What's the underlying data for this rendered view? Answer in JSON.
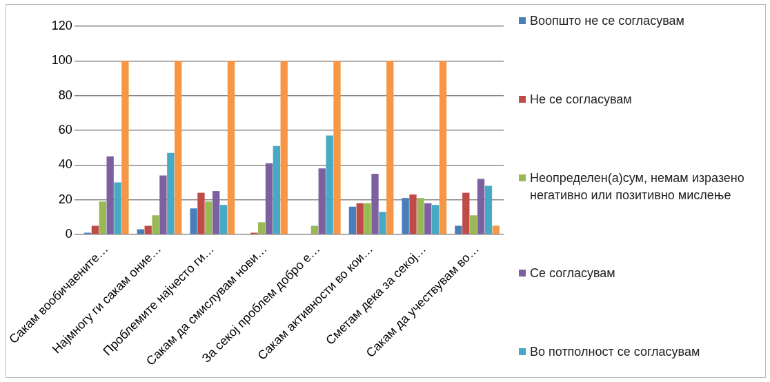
{
  "chart_data": {
    "type": "bar",
    "categories": [
      "Сакам вообичаените…",
      "Најмногу ги сакам оние…",
      "Проблемите најчесто ги…",
      "Сакам да смислувам нови…",
      "За секој проблем добро е…",
      "Сакам активности во кои…",
      "Сметам дека за секој…",
      "Сакам да учествувам во…"
    ],
    "series": [
      {
        "name": "Воопшто не се согласувам",
        "color": "#4a7ebb",
        "values": [
          1,
          3,
          15,
          0,
          0,
          16,
          21,
          5
        ]
      },
      {
        "name": "Не се согласувам",
        "color": "#be4b48",
        "values": [
          5,
          5,
          24,
          1,
          0,
          18,
          23,
          24
        ]
      },
      {
        "name": "Неопределен(а)сум, немам изразено негативно или позитивно мислење",
        "color": "#98b954",
        "values": [
          19,
          11,
          19,
          7,
          5,
          18,
          21,
          11
        ]
      },
      {
        "name": "Се согласувам",
        "color": "#7d60a0",
        "values": [
          45,
          34,
          25,
          41,
          38,
          35,
          18,
          32
        ]
      },
      {
        "name": "Во потполност се согласувам",
        "color": "#46aac5",
        "values": [
          30,
          47,
          17,
          51,
          57,
          13,
          17,
          28
        ]
      },
      {
        "color": "#f79646",
        "values": [
          100,
          100,
          100,
          100,
          100,
          100,
          100,
          5
        ]
      }
    ],
    "ylim": [
      0,
      120
    ],
    "yticks": [
      0,
      20,
      40,
      60,
      80,
      100,
      120
    ],
    "grid": "y",
    "legend": "right"
  }
}
